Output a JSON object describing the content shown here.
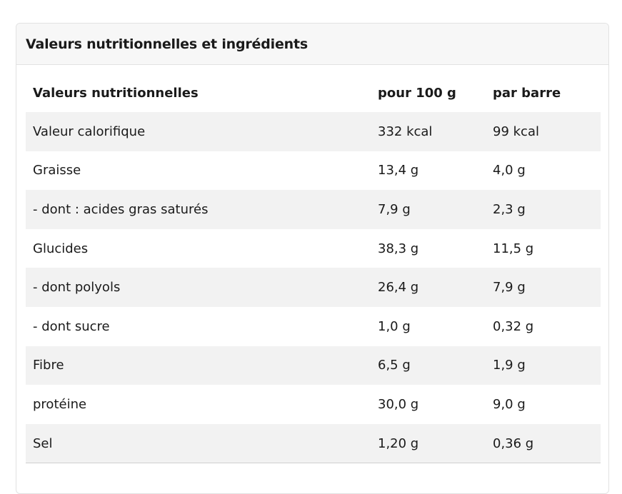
{
  "section": {
    "title": "Valeurs nutritionnelles et ingrédients"
  },
  "table": {
    "headers": [
      "Valeurs nutritionnelles",
      "pour 100 g",
      "par barre"
    ],
    "rows": [
      [
        "Valeur calorifique",
        "332 kcal",
        "99 kcal"
      ],
      [
        "Graisse",
        "13,4 g",
        "4,0 g"
      ],
      [
        "- dont : acides gras saturés",
        "7,9 g",
        "2,3 g"
      ],
      [
        "Glucides",
        "38,3 g",
        "11,5 g"
      ],
      [
        "- dont polyols",
        "26,4 g",
        "7,9 g"
      ],
      [
        "- dont sucre",
        "1,0 g",
        "0,32 g"
      ],
      [
        "Fibre",
        "6,5 g",
        "1,9 g"
      ],
      [
        "protéine",
        "30,0 g",
        "9,0 g"
      ],
      [
        "Sel",
        "1,20 g",
        "0,36 g"
      ]
    ]
  }
}
